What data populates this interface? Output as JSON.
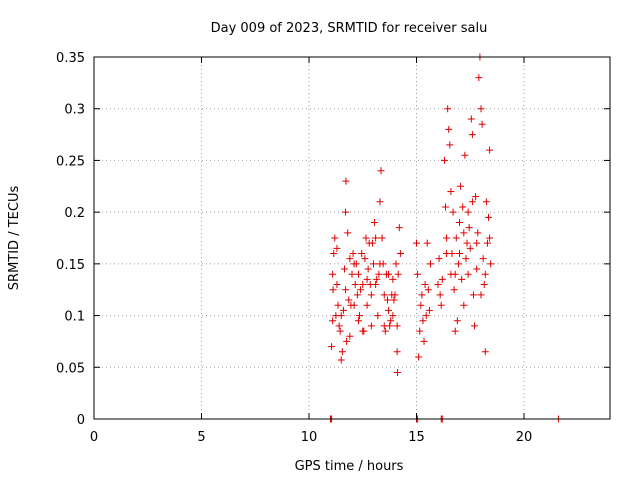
{
  "chart_data": {
    "type": "scatter",
    "title": "Day 009 of 2023, SRMTID for receiver salu",
    "xlabel": "GPS time / hours",
    "ylabel": "SRMTID / TECUs",
    "xlim": [
      0,
      24
    ],
    "ylim": [
      0,
      0.35
    ],
    "xticks": [
      0,
      5,
      10,
      15,
      20
    ],
    "xtick_labels": [
      "0",
      "5",
      "10",
      "15",
      "20"
    ],
    "yticks": [
      0,
      0.05,
      0.1,
      0.15,
      0.2,
      0.25,
      0.3,
      0.35
    ],
    "ytick_labels": [
      "0",
      "0.05",
      "0.1",
      "0.15",
      "0.2",
      "0.25",
      "0.3",
      "0.35"
    ],
    "grid": true,
    "marker": "+",
    "color": "#e00000",
    "series": [
      {
        "name": "SRMTID",
        "points": [
          [
            11.0,
            0.0
          ],
          [
            11.05,
            0.0
          ],
          [
            15.0,
            0.0
          ],
          [
            15.05,
            0.0
          ],
          [
            16.15,
            0.0
          ],
          [
            16.2,
            0.0
          ],
          [
            21.6,
            0.0
          ],
          [
            11.05,
            0.07
          ],
          [
            11.1,
            0.095
          ],
          [
            11.12,
            0.125
          ],
          [
            11.15,
            0.16
          ],
          [
            11.2,
            0.175
          ],
          [
            11.25,
            0.1
          ],
          [
            11.3,
            0.13
          ],
          [
            11.35,
            0.11
          ],
          [
            11.4,
            0.09
          ],
          [
            11.45,
            0.085
          ],
          [
            11.5,
            0.057
          ],
          [
            11.55,
            0.065
          ],
          [
            11.6,
            0.105
          ],
          [
            11.65,
            0.145
          ],
          [
            11.7,
            0.2
          ],
          [
            11.72,
            0.23
          ],
          [
            11.75,
            0.075
          ],
          [
            11.8,
            0.18
          ],
          [
            11.85,
            0.115
          ],
          [
            11.9,
            0.08
          ],
          [
            11.95,
            0.11
          ],
          [
            12.0,
            0.14
          ],
          [
            12.05,
            0.16
          ],
          [
            12.1,
            0.15
          ],
          [
            12.15,
            0.13
          ],
          [
            12.2,
            0.15
          ],
          [
            12.25,
            0.12
          ],
          [
            12.3,
            0.095
          ],
          [
            12.35,
            0.1
          ],
          [
            12.4,
            0.125
          ],
          [
            12.45,
            0.16
          ],
          [
            12.5,
            0.085
          ],
          [
            12.55,
            0.085
          ],
          [
            12.6,
            0.155
          ],
          [
            12.65,
            0.175
          ],
          [
            12.7,
            0.135
          ],
          [
            12.75,
            0.145
          ],
          [
            12.8,
            0.17
          ],
          [
            12.85,
            0.13
          ],
          [
            12.9,
            0.09
          ],
          [
            12.95,
            0.17
          ],
          [
            13.0,
            0.15
          ],
          [
            13.05,
            0.19
          ],
          [
            13.1,
            0.175
          ],
          [
            13.15,
            0.135
          ],
          [
            13.2,
            0.1
          ],
          [
            13.25,
            0.14
          ],
          [
            13.3,
            0.21
          ],
          [
            13.35,
            0.24
          ],
          [
            13.4,
            0.175
          ],
          [
            13.45,
            0.15
          ],
          [
            13.5,
            0.12
          ],
          [
            13.55,
            0.085
          ],
          [
            13.6,
            0.14
          ],
          [
            13.65,
            0.115
          ],
          [
            13.7,
            0.105
          ],
          [
            13.75,
            0.09
          ],
          [
            13.8,
            0.095
          ],
          [
            13.85,
            0.12
          ],
          [
            13.9,
            0.135
          ],
          [
            13.95,
            0.115
          ],
          [
            14.0,
            0.12
          ],
          [
            14.05,
            0.15
          ],
          [
            14.1,
            0.065
          ],
          [
            14.12,
            0.045
          ],
          [
            14.15,
            0.14
          ],
          [
            14.2,
            0.185
          ],
          [
            14.25,
            0.16
          ],
          [
            11.1,
            0.14
          ],
          [
            11.3,
            0.165
          ],
          [
            11.5,
            0.1
          ],
          [
            11.7,
            0.125
          ],
          [
            11.9,
            0.155
          ],
          [
            12.1,
            0.11
          ],
          [
            12.3,
            0.14
          ],
          [
            12.5,
            0.13
          ],
          [
            12.7,
            0.11
          ],
          [
            12.9,
            0.12
          ],
          [
            13.1,
            0.13
          ],
          [
            13.3,
            0.15
          ],
          [
            13.5,
            0.09
          ],
          [
            13.7,
            0.14
          ],
          [
            13.9,
            0.1
          ],
          [
            14.1,
            0.09
          ],
          [
            15.0,
            0.17
          ],
          [
            15.05,
            0.14
          ],
          [
            15.1,
            0.06
          ],
          [
            15.15,
            0.085
          ],
          [
            15.2,
            0.11
          ],
          [
            15.25,
            0.12
          ],
          [
            15.3,
            0.095
          ],
          [
            15.35,
            0.075
          ],
          [
            15.4,
            0.13
          ],
          [
            15.45,
            0.1
          ],
          [
            15.5,
            0.17
          ],
          [
            15.55,
            0.125
          ],
          [
            15.6,
            0.105
          ],
          [
            15.65,
            0.15
          ],
          [
            16.0,
            0.13
          ],
          [
            16.05,
            0.155
          ],
          [
            16.1,
            0.12
          ],
          [
            16.15,
            0.11
          ],
          [
            16.2,
            0.135
          ],
          [
            16.3,
            0.25
          ],
          [
            16.35,
            0.205
          ],
          [
            16.4,
            0.175
          ],
          [
            16.45,
            0.3
          ],
          [
            16.5,
            0.28
          ],
          [
            16.55,
            0.265
          ],
          [
            16.6,
            0.14
          ],
          [
            16.65,
            0.16
          ],
          [
            16.7,
            0.2
          ],
          [
            16.75,
            0.125
          ],
          [
            16.8,
            0.085
          ],
          [
            16.85,
            0.175
          ],
          [
            16.9,
            0.095
          ],
          [
            16.95,
            0.15
          ],
          [
            17.0,
            0.19
          ],
          [
            17.05,
            0.225
          ],
          [
            17.1,
            0.135
          ],
          [
            17.15,
            0.205
          ],
          [
            17.2,
            0.11
          ],
          [
            17.25,
            0.255
          ],
          [
            17.3,
            0.155
          ],
          [
            17.35,
            0.17
          ],
          [
            17.4,
            0.2
          ],
          [
            17.45,
            0.185
          ],
          [
            17.5,
            0.165
          ],
          [
            17.55,
            0.29
          ],
          [
            17.6,
            0.275
          ],
          [
            17.65,
            0.12
          ],
          [
            17.7,
            0.09
          ],
          [
            17.75,
            0.215
          ],
          [
            17.8,
            0.145
          ],
          [
            17.85,
            0.18
          ],
          [
            17.9,
            0.33
          ],
          [
            17.95,
            0.35
          ],
          [
            18.0,
            0.3
          ],
          [
            18.05,
            0.285
          ],
          [
            18.1,
            0.155
          ],
          [
            18.15,
            0.13
          ],
          [
            18.2,
            0.065
          ],
          [
            18.25,
            0.21
          ],
          [
            18.3,
            0.17
          ],
          [
            18.35,
            0.195
          ],
          [
            18.4,
            0.26
          ],
          [
            18.45,
            0.15
          ],
          [
            16.4,
            0.16
          ],
          [
            16.6,
            0.22
          ],
          [
            16.8,
            0.14
          ],
          [
            17.0,
            0.16
          ],
          [
            17.2,
            0.18
          ],
          [
            17.4,
            0.14
          ],
          [
            17.6,
            0.21
          ],
          [
            17.8,
            0.17
          ],
          [
            18.0,
            0.12
          ],
          [
            18.2,
            0.14
          ],
          [
            18.4,
            0.175
          ]
        ]
      }
    ]
  }
}
